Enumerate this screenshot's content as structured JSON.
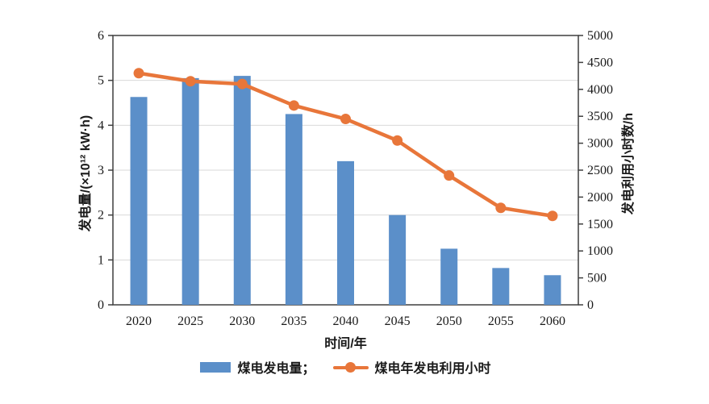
{
  "chart_data": {
    "type": "bar+line",
    "title": "",
    "categories": [
      "2020",
      "2025",
      "2030",
      "2035",
      "2040",
      "2045",
      "2050",
      "2055",
      "2060"
    ],
    "series": [
      {
        "name": "煤电发电量",
        "type": "bar",
        "axis": "left",
        "values": [
          4.63,
          5.05,
          5.1,
          4.25,
          3.2,
          2.0,
          1.25,
          0.82,
          0.66
        ]
      },
      {
        "name": "煤电年发电利用小时",
        "type": "line",
        "axis": "right",
        "values": [
          4300,
          4150,
          4100,
          3700,
          3450,
          3050,
          2400,
          1800,
          1650
        ]
      }
    ],
    "left_axis": {
      "label": "发电量/(×10¹² kW·h)",
      "min": 0,
      "max": 6,
      "step": 1
    },
    "right_axis": {
      "label": "发电利用小时数/h",
      "min": 0,
      "max": 5000,
      "step": 500
    },
    "xlabel": "时间/年",
    "grid": true,
    "legend_position": "bottom"
  },
  "legend": {
    "bar_label": "煤电发电量；",
    "line_label": "煤电年发电利用小时"
  },
  "colors": {
    "bar": "#5b8fc9",
    "line": "#e8763a",
    "axis": "#3f3f3f",
    "grid": "#d9d9d9",
    "text": "#1a1a1a",
    "background": "#ffffff"
  }
}
